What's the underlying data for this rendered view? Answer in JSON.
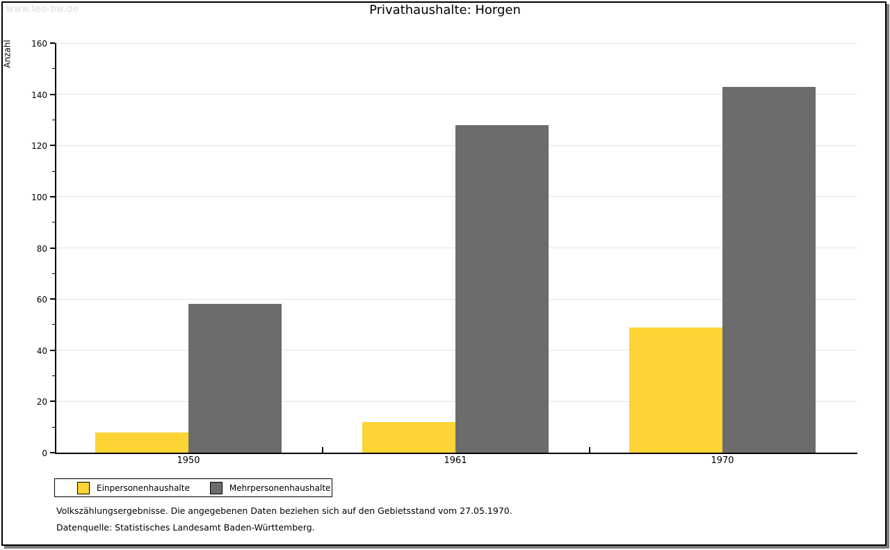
{
  "watermark": "www.leo-bw.de",
  "chart_data": {
    "type": "bar",
    "title": "Privathaushalte: Horgen",
    "ylabel": "Anzahl",
    "xlabel": "",
    "categories": [
      "1950",
      "1961",
      "1970"
    ],
    "series": [
      {
        "name": "Einpersonenhaushalte",
        "color": "#FCD435",
        "values": [
          8,
          12,
          49
        ]
      },
      {
        "name": "Mehrpersonenhaushalte",
        "color": "#6C6C6C",
        "values": [
          58,
          128,
          143
        ]
      }
    ],
    "ylim": [
      0,
      160
    ],
    "ytick_step": 20,
    "minor_tick_step": 10,
    "grid": true,
    "legend_position": "bottom-left"
  },
  "footer": {
    "line1": "Volkszählungsergebnisse. Die angegebenen Daten beziehen sich auf den Gebietsstand vom 27.05.1970.",
    "line2": "Datenquelle: Statistisches Landesamt Baden-Württemberg."
  }
}
